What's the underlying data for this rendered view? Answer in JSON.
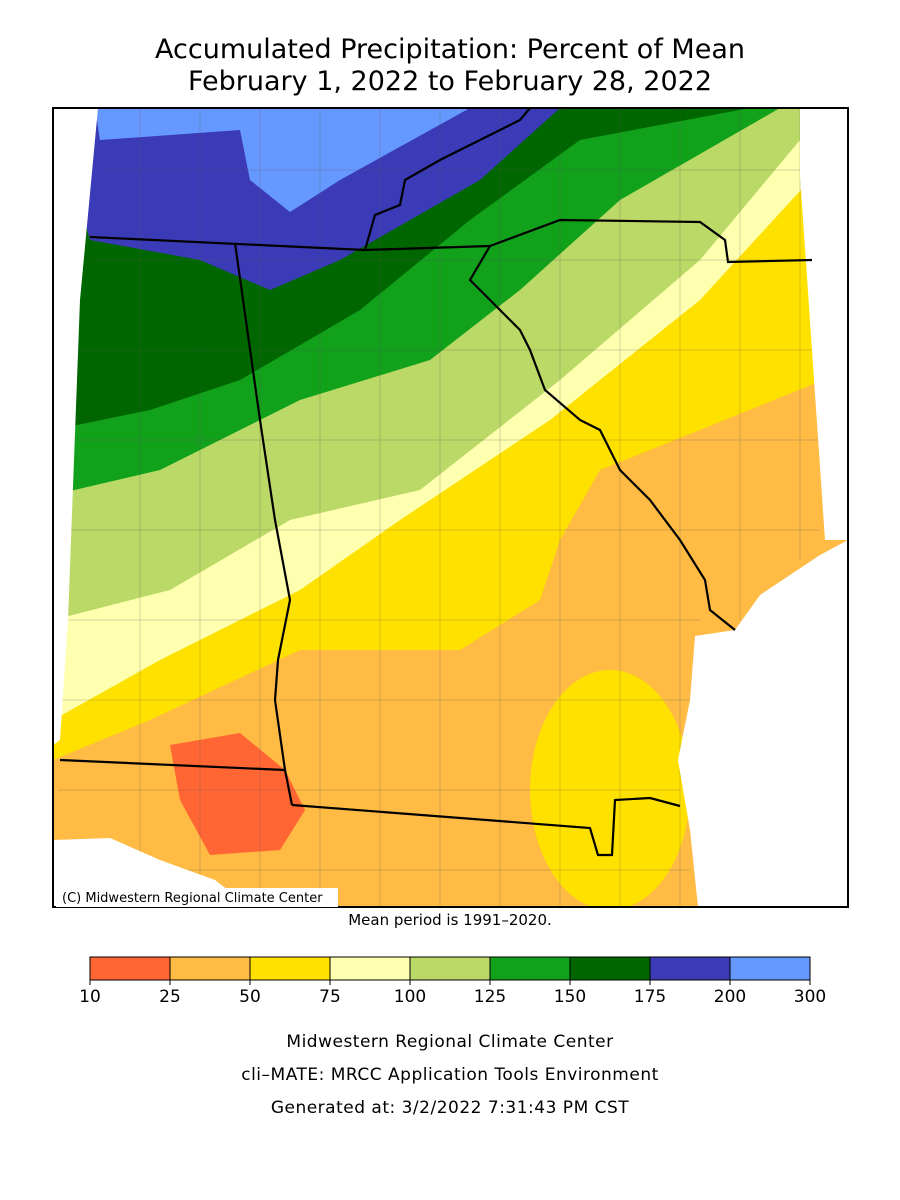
{
  "header": {
    "title_lines": [
      "Accumulated Precipitation: Percent of Mean",
      "February 1, 2022 to February 28, 2022"
    ]
  },
  "map": {
    "copyright": "(C) Midwestern Regional Climate Center",
    "note": "Mean period is 1991–2020."
  },
  "legend": {
    "edges": [
      10,
      25,
      50,
      75,
      100,
      125,
      150,
      175,
      200,
      300
    ],
    "colors": [
      "#ff6633",
      "#ffbb44",
      "#ffe100",
      "#ffffb0",
      "#bbd966",
      "#11a11b",
      "#006600",
      "#3b3bb8",
      "#6699ff"
    ]
  },
  "footer": {
    "lines": [
      "Midwestern Regional Climate Center",
      "cli–MATE: MRCC Application Tools Environment",
      "Generated at: 3/2/2022 7:31:43 PM CST"
    ]
  }
}
